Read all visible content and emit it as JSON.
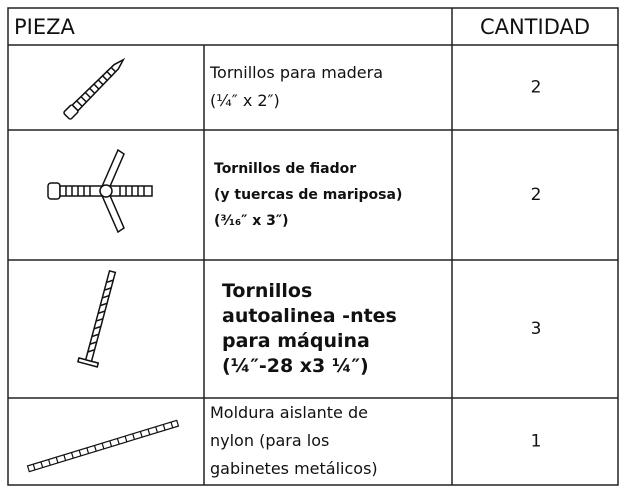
{
  "table": {
    "header": [
      "PIEZA",
      "CANTIDAD"
    ],
    "rows": [
      {
        "lines": [
          "Tornillos para madera",
          "(¼″ x 2″)"
        ],
        "quantity": "2"
      },
      {
        "lines": [
          "Tornillos de fiador",
          "(y tuercas de mariposa)",
          "(³⁄₁₆″ x 3″)"
        ],
        "quantity": "2"
      },
      {
        "lines": [
          "Tornillos",
          "autoalinea  -ntes",
          "para máquina",
          "(¼″-28 x3 ¼″)"
        ],
        "quantity": "3"
      },
      {
        "lines": [
          "Moldura aislante de",
          "nylon (para los",
          "gabinetes metálicos)"
        ],
        "quantity": "1"
      }
    ]
  }
}
